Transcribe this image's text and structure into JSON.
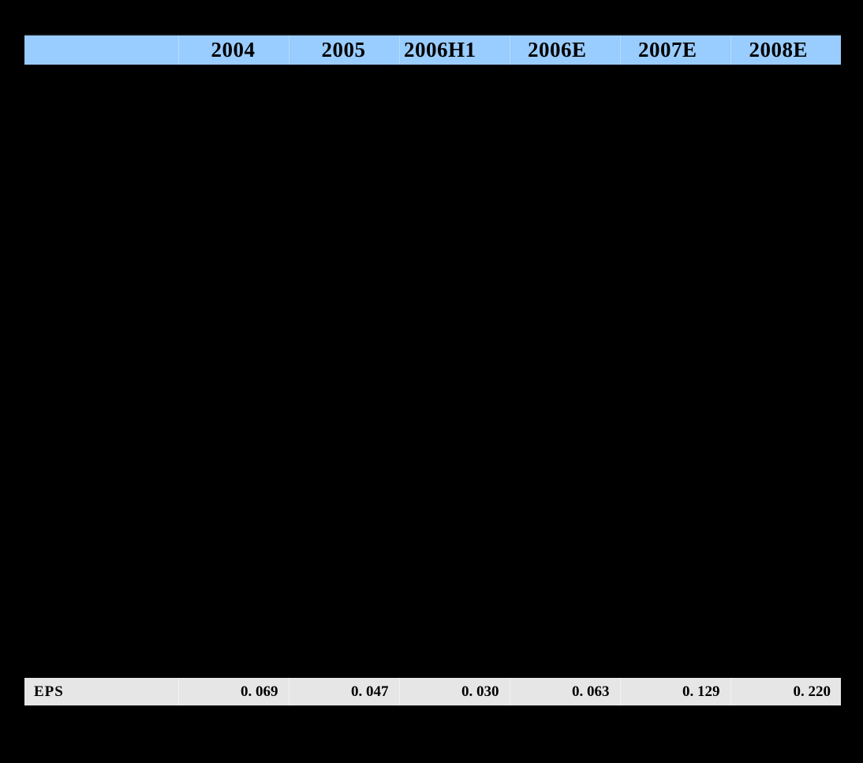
{
  "canvas": {
    "background": "#000000"
  },
  "table": {
    "header": {
      "label": "",
      "columns": [
        "2004",
        "2005",
        "2006H1",
        "2006E",
        "2007E",
        "2008E"
      ],
      "background": "#99CCFF",
      "text_color": "#000000"
    },
    "eps_row": {
      "label": "EPS",
      "values": [
        "0. 069",
        "0. 047",
        "0. 030",
        "0. 063",
        "0. 129",
        "0. 220"
      ],
      "background": "#E6E6E6",
      "text_color": "#000000"
    }
  }
}
